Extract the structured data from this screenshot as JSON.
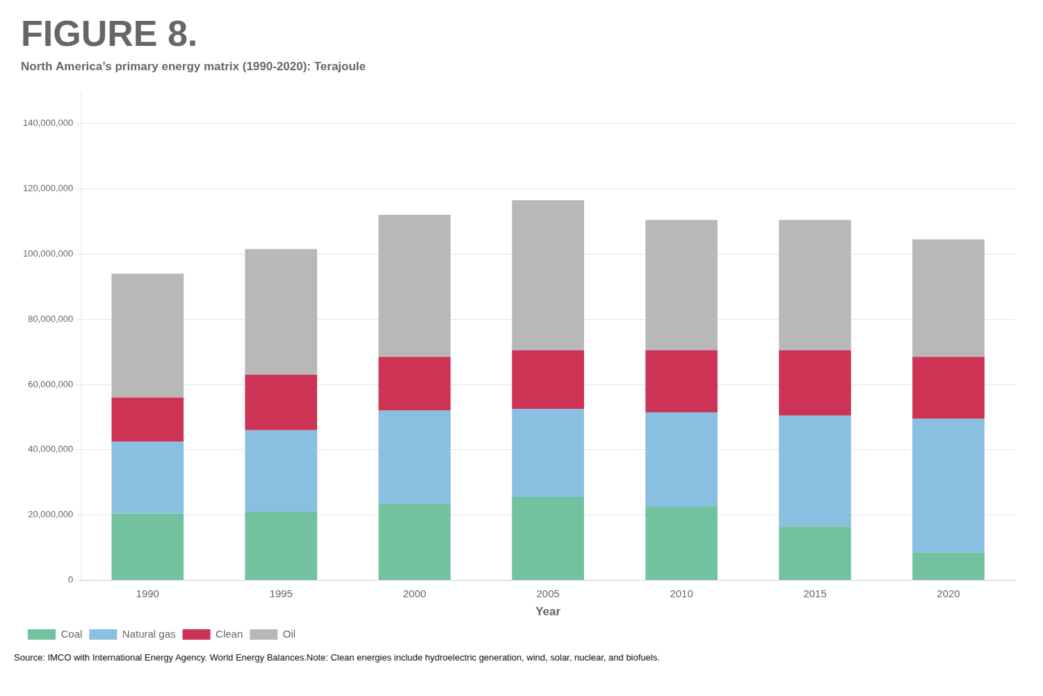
{
  "chart_data": {
    "type": "bar",
    "title": "FIGURE 8.",
    "subtitle": "North America’s primary energy matrix (1990-2020): Terajoule",
    "x_label": "Year",
    "annotations": [
      "Source: IMCO with International Energy Agency. World Energy Balances.Note: Clean energies include hydroelectric generation, wind, solar, nuclear, and biofuels."
    ],
    "categories": [
      "1990",
      "1995",
      "2000",
      "2005",
      "2010",
      "2015",
      "2020"
    ],
    "series": [
      {
        "name": "Coal",
        "color": "#72c2a0",
        "values": [
          20500000,
          21000000,
          23500000,
          25500000,
          22500000,
          16500000,
          8500000
        ]
      },
      {
        "name": "Natural gas",
        "color": "#89bfe0",
        "values": [
          22000000,
          25000000,
          28500000,
          27000000,
          29000000,
          34000000,
          41000000
        ]
      },
      {
        "name": "Clean",
        "color": "#cc3355",
        "values": [
          13500000,
          17000000,
          16500000,
          18000000,
          19000000,
          20000000,
          19000000
        ]
      },
      {
        "name": "Oil",
        "color": "#b8b8b8",
        "values": [
          38000000,
          38500000,
          43500000,
          46000000,
          40000000,
          40000000,
          36000000
        ]
      }
    ],
    "ylim": [
      0,
      150000000
    ],
    "yticks": [
      0,
      {
        "value": 20000000,
        "label": "20,000,000"
      },
      {
        "value": 40000000,
        "label": "40,000,000"
      },
      {
        "value": 60000000,
        "label": "60,000,000"
      },
      {
        "value": 80000000,
        "label": "80,000,000"
      },
      {
        "value": 100000000,
        "label": "100,000,000"
      },
      {
        "value": 120000000,
        "label": "120,000,000"
      },
      {
        "value": 140000000,
        "label": "140,000,000"
      }
    ],
    "stacked": true,
    "grid": true,
    "legend": "lower left"
  }
}
